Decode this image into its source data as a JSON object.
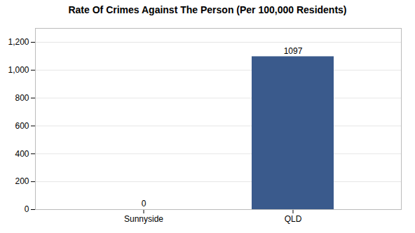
{
  "chart_data": {
    "type": "bar",
    "title": "Rate Of Crimes Against The Person (Per 100,000 Residents)",
    "categories": [
      "Sunnyside",
      "QLD"
    ],
    "values": [
      0,
      1097
    ],
    "color": "#3a5a8c",
    "ylim": [
      0,
      1300
    ],
    "yticks": [
      0,
      200,
      400,
      600,
      800,
      1000,
      1200
    ],
    "grid": true,
    "data_labels": true
  }
}
